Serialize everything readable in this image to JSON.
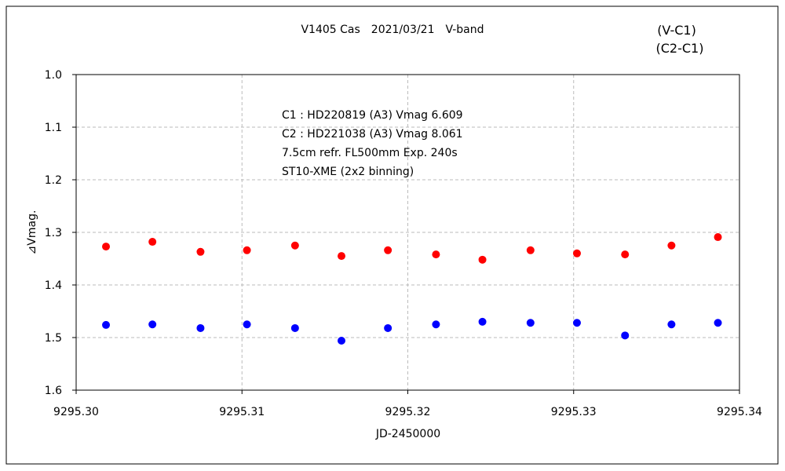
{
  "chart_data": {
    "type": "scatter",
    "title": "V1405 Cas　2021/03/21　V-band",
    "xlabel": "JD-2450000",
    "ylabel": "⊿Vmag.",
    "xlim": [
      9295.3,
      9295.34
    ],
    "ylim": [
      1.0,
      1.6
    ],
    "y_inverted": true,
    "grid": true,
    "legend_position": "top-right",
    "xticks": [
      "9295.30",
      "9295.31",
      "9295.32",
      "9295.33",
      "9295.34"
    ],
    "yticks": [
      "1.0",
      "1.1",
      "1.2",
      "1.3",
      "1.4",
      "1.5",
      "1.6"
    ],
    "annotations": [
      "C1 : HD220819 (A3) Vmag 6.609",
      "C2 : HD221038 (A3) Vmag 8.061",
      "7.5cm refr. FL500mm  Exp. 240s",
      "ST10-XME (2x2 binning)"
    ],
    "x": [
      9295.3018,
      9295.3046,
      9295.3075,
      9295.3103,
      9295.3132,
      9295.316,
      9295.3188,
      9295.3217,
      9295.3245,
      9295.3274,
      9295.3302,
      9295.3331,
      9295.3359,
      9295.3387
    ],
    "series": [
      {
        "name": "(V-C1)",
        "color": "#ff0000",
        "values": [
          1.327,
          1.318,
          1.337,
          1.334,
          1.325,
          1.345,
          1.334,
          1.342,
          1.352,
          1.334,
          1.34,
          1.342,
          1.325,
          1.309
        ]
      },
      {
        "name": "(C2-C1)",
        "color": "#0000ff",
        "values": [
          1.476,
          1.475,
          1.482,
          1.475,
          1.482,
          1.506,
          1.482,
          1.475,
          1.47,
          1.472,
          1.472,
          1.496,
          1.475,
          1.472
        ]
      }
    ]
  }
}
